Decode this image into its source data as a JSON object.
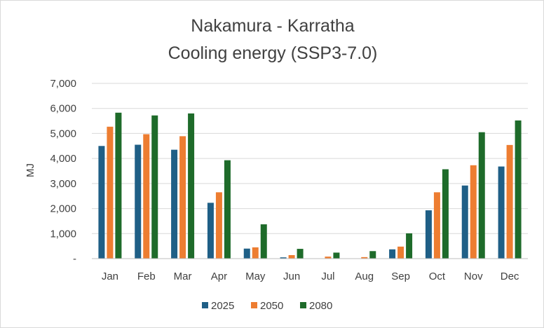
{
  "chart_data": {
    "type": "bar",
    "title": "Nakamura - Karratha",
    "subtitle": "Cooling energy (SSP3-7.0)",
    "xlabel": "",
    "ylabel": "MJ",
    "ylim": [
      0,
      7000
    ],
    "yticks": [
      0,
      1000,
      2000,
      3000,
      4000,
      5000,
      6000,
      7000
    ],
    "ytick_labels": [
      "-",
      "1,000",
      "2,000",
      "3,000",
      "4,000",
      "5,000",
      "6,000",
      "7,000"
    ],
    "grid": true,
    "legend_position": "bottom",
    "categories": [
      "Jan",
      "Feb",
      "Mar",
      "Apr",
      "May",
      "Jun",
      "Jul",
      "Aug",
      "Sep",
      "Oct",
      "Nov",
      "Dec"
    ],
    "series": [
      {
        "name": "2025",
        "color": "#1f5f86",
        "values": [
          4500,
          4550,
          4350,
          2230,
          400,
          50,
          0,
          0,
          370,
          1930,
          2920,
          3680
        ]
      },
      {
        "name": "2050",
        "color": "#ed7d31",
        "values": [
          5270,
          4970,
          4890,
          2650,
          450,
          140,
          80,
          60,
          480,
          2650,
          3730,
          4540
        ]
      },
      {
        "name": "2080",
        "color": "#1e6b2a",
        "values": [
          5830,
          5720,
          5800,
          3930,
          1370,
          390,
          240,
          300,
          1010,
          3570,
          5050,
          5520
        ]
      }
    ]
  }
}
